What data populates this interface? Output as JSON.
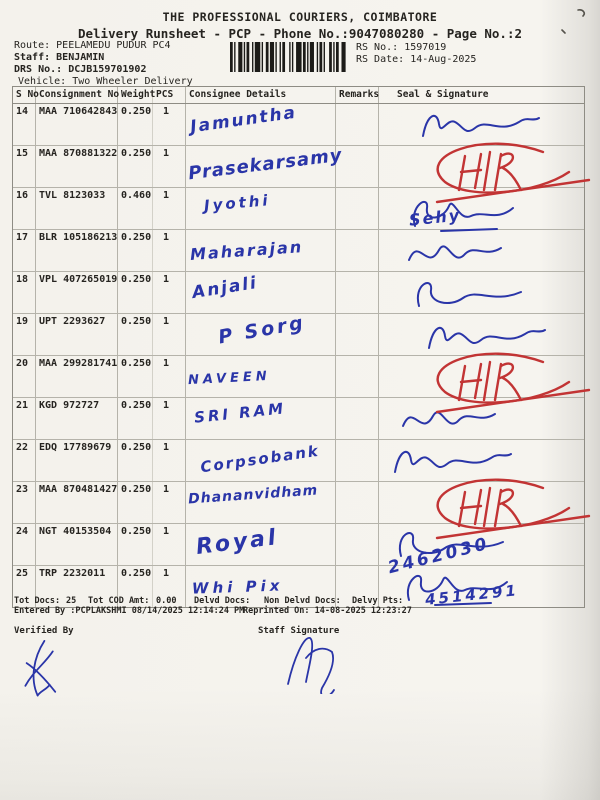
{
  "page": {
    "title": "THE PROFESSIONAL COURIERS, COIMBATORE",
    "subtitle": "Delivery Runsheet - PCP - Phone No.:9047080280 - Page No.:2"
  },
  "header": {
    "route_label": "Route:",
    "route_value": "PEELAMEDU PUDUR PC4",
    "staff_label": "Staff:",
    "staff_value": "BENJAMIN",
    "drs_label": "DRS No.:",
    "drs_value": "DCJB159701902",
    "vehicle_label": "Vehicle:",
    "vehicle_value": "Two Wheeler Delivery",
    "rs_no_label": "RS No.:",
    "rs_no_value": "1597019",
    "rs_date_label": "RS Date:",
    "rs_date_value": "14-Aug-2025"
  },
  "table": {
    "headers": [
      "S No",
      "Consignment No",
      "Weight",
      "PCS",
      "Consignee Details",
      "Remarks",
      "Seal & Signature"
    ],
    "rows": [
      {
        "s_no": "14",
        "consignment_no": "MAA 710642843",
        "weight": "0.250",
        "pcs": "1",
        "consignee": "Jamuntha",
        "remarks": "",
        "seal": {
          "kind": "signature",
          "text": ""
        }
      },
      {
        "s_no": "15",
        "consignment_no": "MAA 870881322",
        "weight": "0.250",
        "pcs": "1",
        "consignee": "Prasekarsamy",
        "remarks": "",
        "seal": {
          "kind": "hr",
          "text": "H|R"
        }
      },
      {
        "s_no": "16",
        "consignment_no": "TVL 8123033",
        "weight": "0.460",
        "pcs": "1",
        "consignee": "Jyothi",
        "remarks": "",
        "seal": {
          "kind": "signature",
          "text": "Sehy"
        }
      },
      {
        "s_no": "17",
        "consignment_no": "BLR 105186213",
        "weight": "0.250",
        "pcs": "1",
        "consignee": "Maharajan",
        "remarks": "",
        "seal": {
          "kind": "signature",
          "text": ""
        }
      },
      {
        "s_no": "18",
        "consignment_no": "VPL 407265019",
        "weight": "0.250",
        "pcs": "1",
        "consignee": "Anjali",
        "remarks": "",
        "seal": {
          "kind": "signature",
          "text": ""
        }
      },
      {
        "s_no": "19",
        "consignment_no": "UPT 2293627",
        "weight": "0.250",
        "pcs": "1",
        "consignee": "P Sorg",
        "remarks": "",
        "seal": {
          "kind": "signature",
          "text": ""
        }
      },
      {
        "s_no": "20",
        "consignment_no": "MAA 299281741",
        "weight": "0.250",
        "pcs": "1",
        "consignee": "NAVEEN",
        "remarks": "",
        "seal": {
          "kind": "hr",
          "text": "H|R"
        }
      },
      {
        "s_no": "21",
        "consignment_no": "KGD 972727",
        "weight": "0.250",
        "pcs": "1",
        "consignee": "SRI RAM",
        "remarks": "",
        "seal": {
          "kind": "signature",
          "text": ""
        }
      },
      {
        "s_no": "22",
        "consignment_no": "EDQ 17789679",
        "weight": "0.250",
        "pcs": "1",
        "consignee": "Corpsobank",
        "remarks": "",
        "seal": {
          "kind": "signature",
          "text": ""
        }
      },
      {
        "s_no": "23",
        "consignment_no": "MAA 870481427",
        "weight": "0.250",
        "pcs": "1",
        "consignee": "Dhananvidham",
        "remarks": "",
        "seal": {
          "kind": "hr",
          "text": "H|R"
        }
      },
      {
        "s_no": "24",
        "consignment_no": "NGT 40153504",
        "weight": "0.250",
        "pcs": "1",
        "consignee": "Royal",
        "remarks": "",
        "seal": {
          "kind": "signature",
          "text": "2462030"
        }
      },
      {
        "s_no": "25",
        "consignment_no": "TRP 2232011",
        "weight": "0.250",
        "pcs": "1",
        "consignee": "Whi Pix",
        "remarks": "",
        "seal": {
          "kind": "signature",
          "text": "4514291"
        }
      }
    ]
  },
  "totals": {
    "tot_docs_label": "Tot Docs:",
    "tot_docs_value": "25",
    "tot_cod_label": "Tot COD Amt:",
    "tot_cod_value": "0.00",
    "delvd_label": "Delvd Docs:",
    "delvd_value": "",
    "non_delvd_label": "Non Delvd Docs:",
    "non_delvd_value": "",
    "delvy_pts_label": "Delvy Pts:",
    "delvy_pts_value": ""
  },
  "footer": {
    "entered_by": "Entered By :PCPLAKSHMI 08/14/2025 12:14:24 PM",
    "reprinted_on": "Reprinted On: 14-08-2025 12:23:27",
    "verified_by_label": "Verified By",
    "staff_signature_label": "Staff Signature"
  },
  "ink": {
    "blue": "#2a35a8",
    "red": "#c23434"
  }
}
